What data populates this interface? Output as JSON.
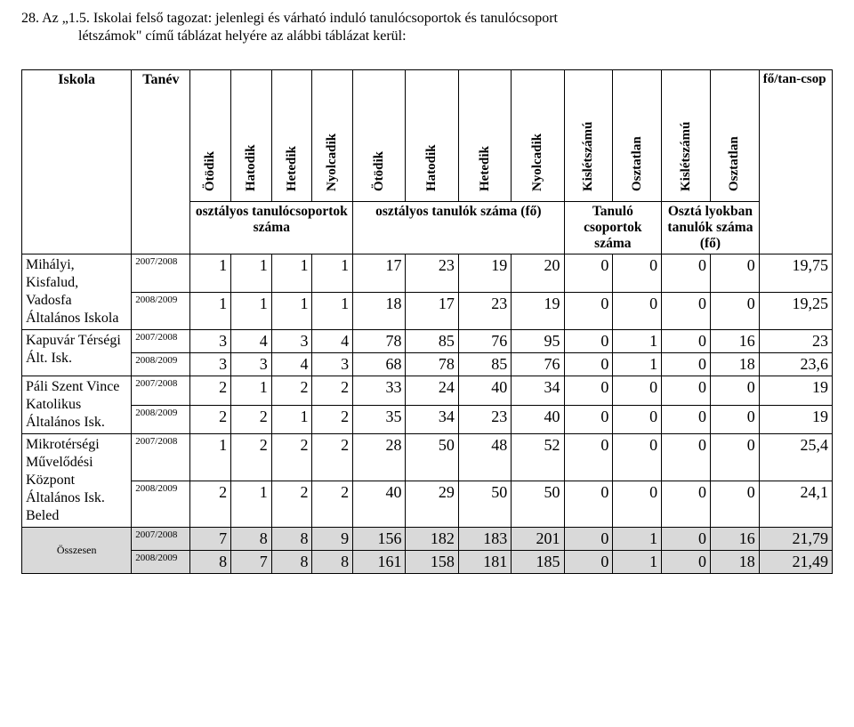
{
  "intro": {
    "line1": "28. Az „1.5. Iskolai felső tagozat: jelenlegi és várható induló tanulócsoportok és tanulócsoport",
    "line2": "létszámok\" című táblázat helyére az alábbi táblázat kerül:"
  },
  "table": {
    "left_headers": {
      "iskola": "Iskola",
      "tanev": "Tanév"
    },
    "vertical_headers": [
      "Ötödik",
      "Hatodik",
      "Hetedik",
      "Nyolcadik",
      "Ötödik",
      "Hatodik",
      "Hetedik",
      "Nyolcadik",
      "Kislétszámú",
      "Osztatlan",
      "Kislétszámú",
      "Osztatlan"
    ],
    "group_headers": {
      "g1": "osztályos tanulócsoportok száma",
      "g2": "osztályos tanulók száma (fő)",
      "g3": "Tanuló csoportok száma",
      "g4": "Osztá lyokban tanulók száma (fő)"
    },
    "fo_tancsop": "fő/tan-csop",
    "schools": [
      {
        "name": "Mihályi, Kisfalud, Vadosfa Általános Iskola",
        "rows": [
          {
            "year": "2007/2008",
            "vals": [
              1,
              1,
              1,
              1,
              17,
              23,
              19,
              20,
              0,
              0,
              0,
              0
            ],
            "ft": "19,75"
          },
          {
            "year": "2008/2009",
            "vals": [
              1,
              1,
              1,
              1,
              18,
              17,
              23,
              19,
              0,
              0,
              0,
              0
            ],
            "ft": "19,25"
          }
        ]
      },
      {
        "name": "Kapuvár Térségi Ált. Isk.",
        "rows": [
          {
            "year": "2007/2008",
            "vals": [
              3,
              4,
              3,
              4,
              78,
              85,
              76,
              95,
              0,
              1,
              0,
              16
            ],
            "ft": "23"
          },
          {
            "year": "2008/2009",
            "vals": [
              3,
              3,
              4,
              3,
              68,
              78,
              85,
              76,
              0,
              1,
              0,
              18
            ],
            "ft": "23,6"
          }
        ]
      },
      {
        "name": "Páli Szent Vince Katolikus Általános  Isk.",
        "rows": [
          {
            "year": "2007/2008",
            "vals": [
              2,
              1,
              2,
              2,
              33,
              24,
              40,
              34,
              0,
              0,
              0,
              0
            ],
            "ft": "19"
          },
          {
            "year": "2008/2009",
            "vals": [
              2,
              2,
              1,
              2,
              35,
              34,
              23,
              40,
              0,
              0,
              0,
              0
            ],
            "ft": "19"
          }
        ]
      },
      {
        "name": "Mikrotérségi Művelődési Központ Általános Isk. Beled",
        "rows": [
          {
            "year": "2007/2008",
            "vals": [
              1,
              2,
              2,
              2,
              28,
              50,
              48,
              52,
              0,
              0,
              0,
              0
            ],
            "ft": "25,4"
          },
          {
            "year": "2008/2009",
            "vals": [
              2,
              1,
              2,
              2,
              40,
              29,
              50,
              50,
              0,
              0,
              0,
              0
            ],
            "ft": "24,1"
          }
        ]
      }
    ],
    "totals": {
      "label": "Összesen",
      "rows": [
        {
          "year": "2007/2008",
          "vals": [
            7,
            8,
            8,
            9,
            156,
            182,
            183,
            201,
            0,
            1,
            0,
            16
          ],
          "ft": "21,79"
        },
        {
          "year": "2008/2009",
          "vals": [
            8,
            7,
            8,
            8,
            161,
            158,
            181,
            185,
            0,
            1,
            0,
            18
          ],
          "ft": "21,49"
        }
      ]
    }
  },
  "style": {
    "font_family": "Times New Roman",
    "body_fontsize": 16,
    "num_fontsize": 18,
    "year_fontsize": 11,
    "totals_bg": "#d9d9d9",
    "border_color": "#000000",
    "background": "#ffffff",
    "text_color": "#000000"
  }
}
